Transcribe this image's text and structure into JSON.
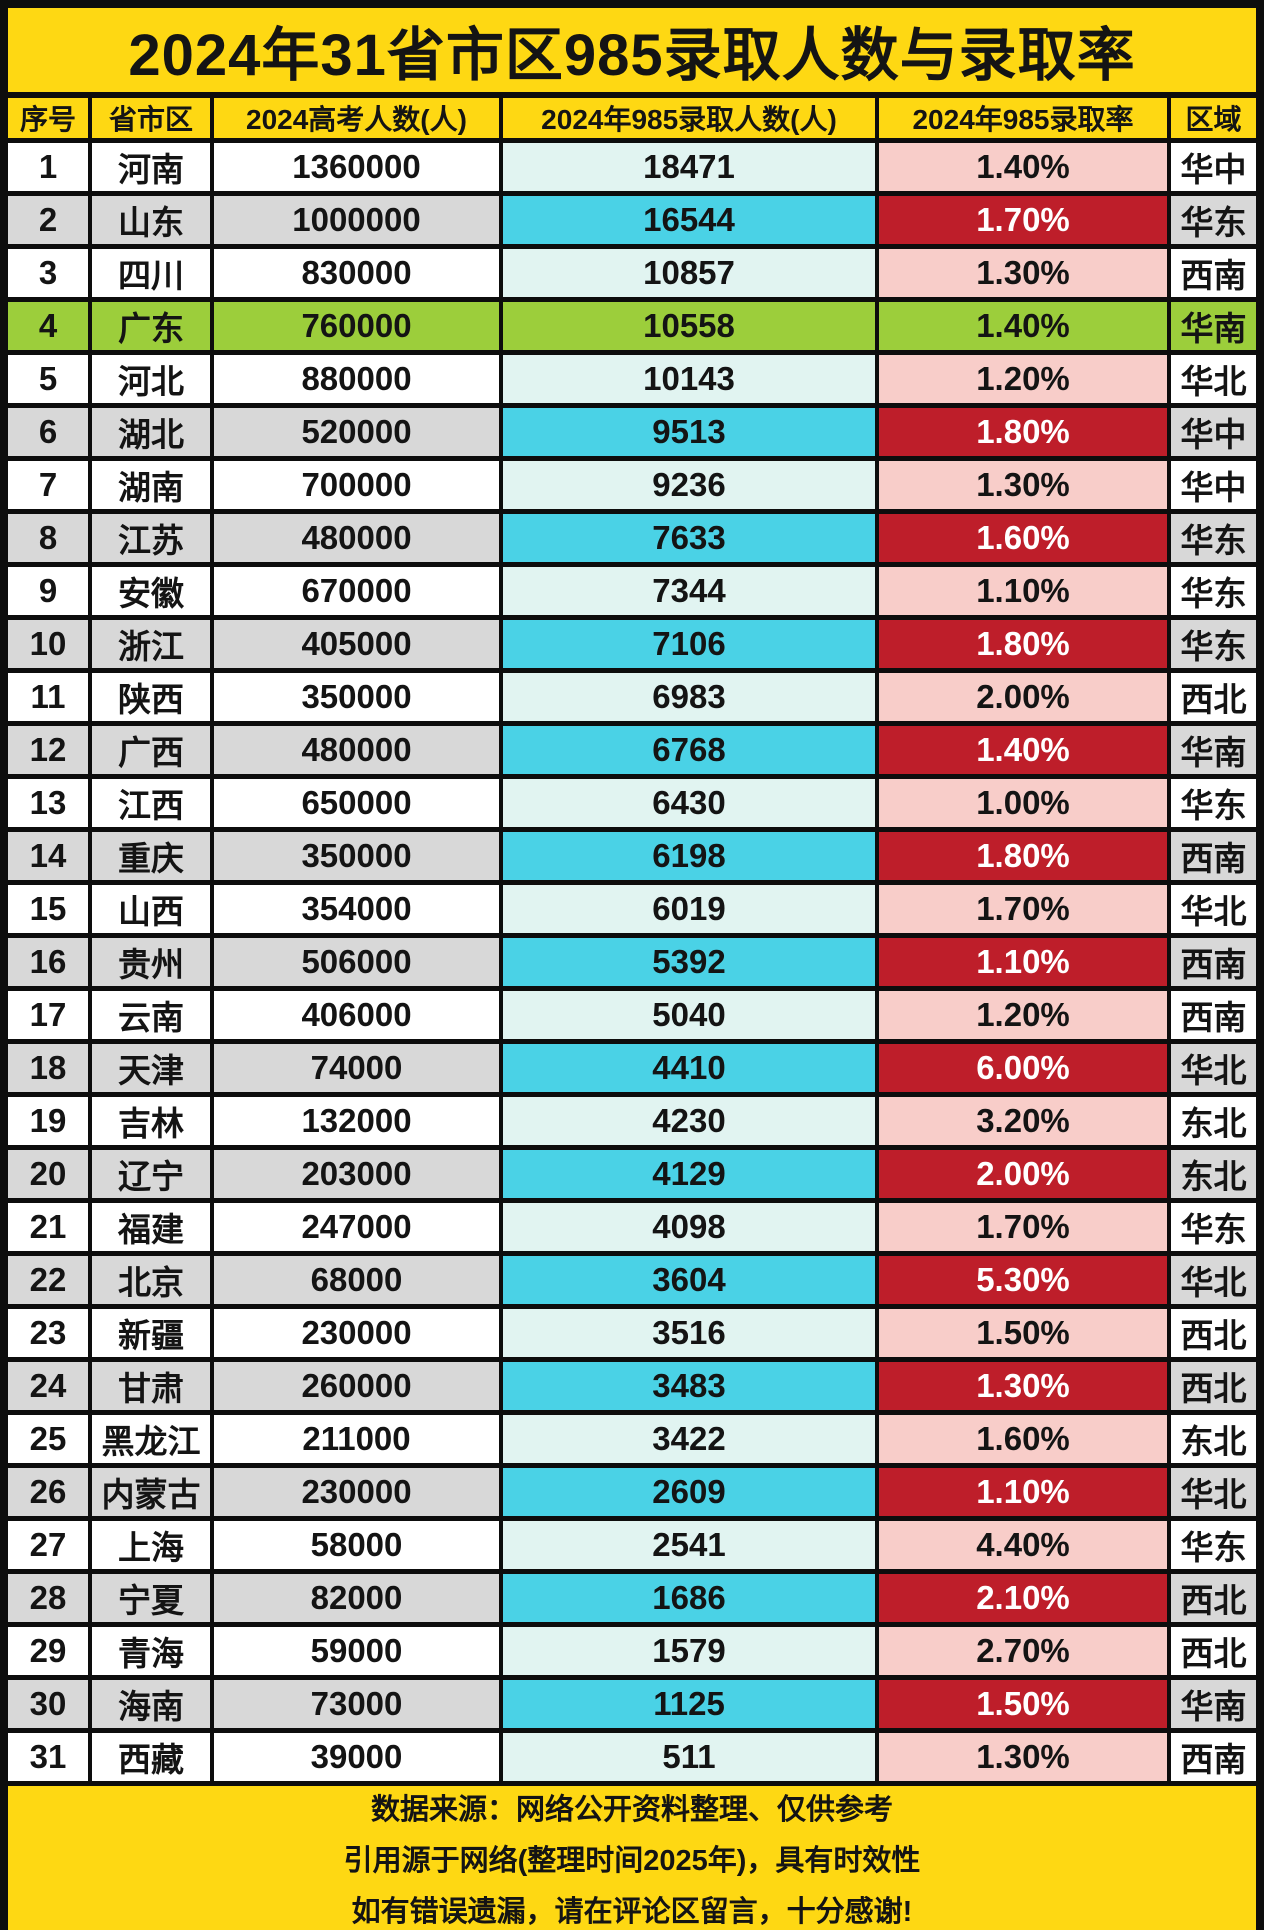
{
  "title": "2024年31省市区985录取人数与录取率",
  "chart_data": {
    "type": "table",
    "title": "2024年31省市区985录取人数与录取率",
    "columns": [
      "序号",
      "省市区",
      "2024高考人数(人)",
      "2024年985录取人数(人)",
      "2024年985录取率",
      "区域"
    ],
    "rows": [
      [
        "1",
        "河南",
        "1360000",
        "18471",
        "1.40%",
        "华中"
      ],
      [
        "2",
        "山东",
        "1000000",
        "16544",
        "1.70%",
        "华东"
      ],
      [
        "3",
        "四川",
        "830000",
        "10857",
        "1.30%",
        "西南"
      ],
      [
        "4",
        "广东",
        "760000",
        "10558",
        "1.40%",
        "华南"
      ],
      [
        "5",
        "河北",
        "880000",
        "10143",
        "1.20%",
        "华北"
      ],
      [
        "6",
        "湖北",
        "520000",
        "9513",
        "1.80%",
        "华中"
      ],
      [
        "7",
        "湖南",
        "700000",
        "9236",
        "1.30%",
        "华中"
      ],
      [
        "8",
        "江苏",
        "480000",
        "7633",
        "1.60%",
        "华东"
      ],
      [
        "9",
        "安徽",
        "670000",
        "7344",
        "1.10%",
        "华东"
      ],
      [
        "10",
        "浙江",
        "405000",
        "7106",
        "1.80%",
        "华东"
      ],
      [
        "11",
        "陕西",
        "350000",
        "6983",
        "2.00%",
        "西北"
      ],
      [
        "12",
        "广西",
        "480000",
        "6768",
        "1.40%",
        "华南"
      ],
      [
        "13",
        "江西",
        "650000",
        "6430",
        "1.00%",
        "华东"
      ],
      [
        "14",
        "重庆",
        "350000",
        "6198",
        "1.80%",
        "西南"
      ],
      [
        "15",
        "山西",
        "354000",
        "6019",
        "1.70%",
        "华北"
      ],
      [
        "16",
        "贵州",
        "506000",
        "5392",
        "1.10%",
        "西南"
      ],
      [
        "17",
        "云南",
        "406000",
        "5040",
        "1.20%",
        "西南"
      ],
      [
        "18",
        "天津",
        "74000",
        "4410",
        "6.00%",
        "华北"
      ],
      [
        "19",
        "吉林",
        "132000",
        "4230",
        "3.20%",
        "东北"
      ],
      [
        "20",
        "辽宁",
        "203000",
        "4129",
        "2.00%",
        "东北"
      ],
      [
        "21",
        "福建",
        "247000",
        "4098",
        "1.70%",
        "华东"
      ],
      [
        "22",
        "北京",
        "68000",
        "3604",
        "5.30%",
        "华北"
      ],
      [
        "23",
        "新疆",
        "230000",
        "3516",
        "1.50%",
        "西北"
      ],
      [
        "24",
        "甘肃",
        "260000",
        "3483",
        "1.30%",
        "西北"
      ],
      [
        "25",
        "黑龙江",
        "211000",
        "3422",
        "1.60%",
        "东北"
      ],
      [
        "26",
        "内蒙古",
        "230000",
        "2609",
        "1.10%",
        "华北"
      ],
      [
        "27",
        "上海",
        "58000",
        "2541",
        "4.40%",
        "华东"
      ],
      [
        "28",
        "宁夏",
        "82000",
        "1686",
        "2.10%",
        "西北"
      ],
      [
        "29",
        "青海",
        "59000",
        "1579",
        "2.70%",
        "西北"
      ],
      [
        "30",
        "海南",
        "73000",
        "1125",
        "1.50%",
        "华南"
      ],
      [
        "31",
        "西藏",
        "39000",
        "511",
        "1.30%",
        "西南"
      ]
    ],
    "highlight": {
      "green_row_index": 4,
      "green_row_province": "广东"
    },
    "layout": {
      "grid": "on",
      "header_position": "top"
    }
  },
  "footer": {
    "lines": [
      "数据来源：网络公开资料整理、仅供参考",
      "引用源于网络(整理时间2025年)，具有时效性",
      "如有错误遗漏，请在评论区留言，十分感谢!"
    ]
  },
  "colors": {
    "title_bg": "#FED813",
    "header_bg": "#FED813",
    "footer_bg": "#FED813",
    "row_odd_bg": "#FFFFFF",
    "row_even_bg": "#D8D8D8",
    "highlight_row_bg": "#9CCE3B",
    "count_cell_odd_bg": "#E1F4F1",
    "count_cell_even_bg": "#4AD2E6",
    "rate_cell_odd_bg": "#F8CDC9",
    "rate_cell_even_bg": "#BE1E2A",
    "rate_cell_even_text": "#FFFFFF",
    "border": "#0D0D0D"
  }
}
